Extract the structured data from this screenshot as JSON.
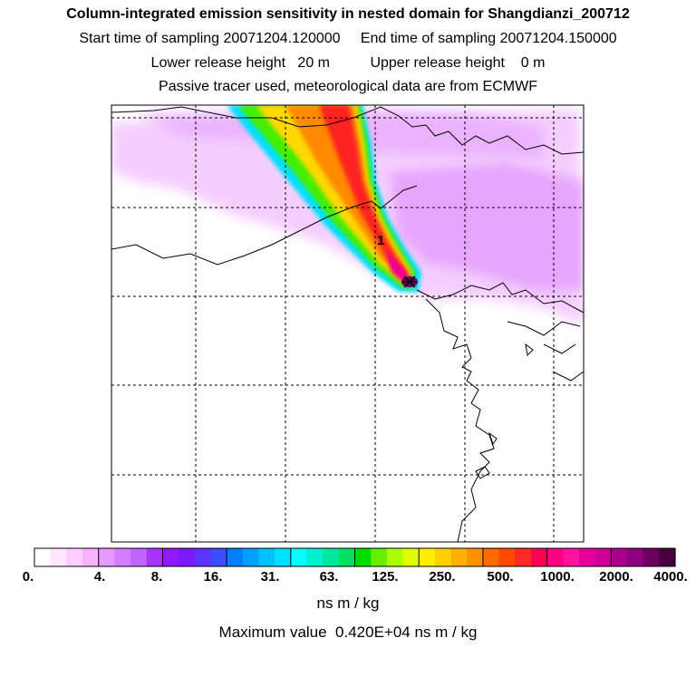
{
  "header": {
    "title": "Column-integrated emission sensitivity in nested domain for Shangdianzi_200712",
    "line2": "Start time of sampling 20071204.120000     End time of sampling 20071204.150000",
    "line3": "Lower release height   20 m          Upper release height    0 m",
    "line4": "Passive tracer used, meteorological data are from ECMWF"
  },
  "chart_data": {
    "type": "heatmap",
    "title": "Column-integrated emission sensitivity in nested domain for Shangdianzi_200712",
    "colorbar_ticks": [
      "0.",
      "4.",
      "8.",
      "16.",
      "31.",
      "63.",
      "125.",
      "250.",
      "500.",
      "1000.",
      "2000.",
      "4000."
    ],
    "colorbar_units": "ns m / kg",
    "max_value_text": "Maximum value  0.420E+04 ns m / kg",
    "annotations": [
      "1"
    ],
    "grid": true,
    "colors": [
      "#ffffff",
      "#ffe6ff",
      "#ffccff",
      "#f5b3ff",
      "#e699ff",
      "#d47fff",
      "#c066ff",
      "#a833ff",
      "#8f1aff",
      "#7a1aff",
      "#5c33ff",
      "#3d4dff",
      "#0080ff",
      "#00a0ff",
      "#00c0ff",
      "#00e0ff",
      "#00ffff",
      "#00f0d0",
      "#00e8a0",
      "#00e060",
      "#00dd00",
      "#66ee00",
      "#aaff00",
      "#ddff00",
      "#ffee00",
      "#ffd000",
      "#ffb000",
      "#ff9000",
      "#ff6a00",
      "#ff4a00",
      "#ff2a2a",
      "#ff0050",
      "#ff0080",
      "#ff14a0",
      "#e6009b",
      "#cc0099",
      "#aa0090",
      "#8a0080",
      "#6a0060",
      "#4a0040"
    ]
  }
}
